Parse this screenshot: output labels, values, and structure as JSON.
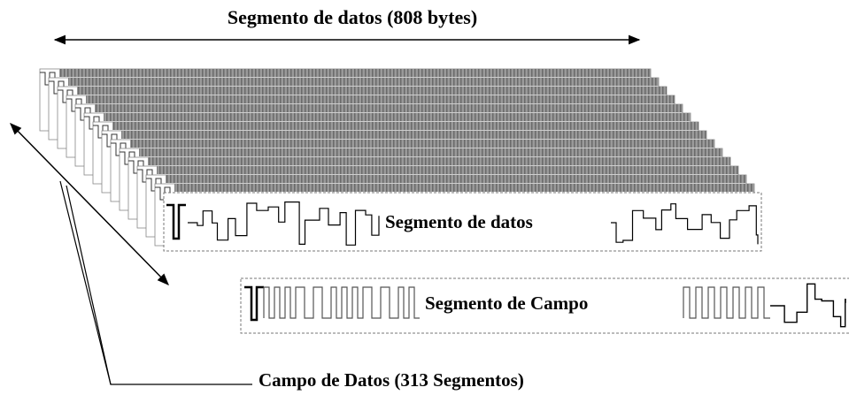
{
  "title": "Segmento de datos (808 bytes)",
  "labels": {
    "data_segment": "Segmento de datos",
    "field_segment": "Segmento de Campo",
    "data_field": "Campo de Datos (313 Segmentos)"
  }
}
